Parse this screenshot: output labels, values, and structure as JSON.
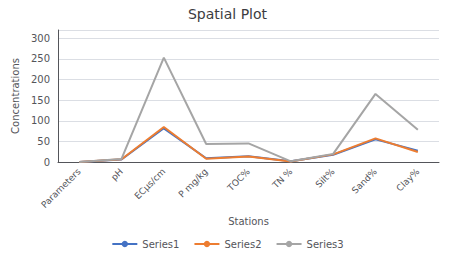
{
  "chart_data": {
    "type": "line",
    "title": "Spatial Plot",
    "xlabel": "Stations",
    "ylabel": "Concentrations",
    "categories": [
      "Parameters",
      "pH",
      "ECµs/cm",
      "P mg/kg",
      "TOC%",
      "TN %",
      "Silt%",
      "Sand%",
      "Clay%"
    ],
    "series": [
      {
        "name": "Series1",
        "color": "#4472C4",
        "values": [
          0,
          6.1,
          81.65,
          9.0,
          14.14,
          1.72,
          17.57,
          54.78,
          27.65
        ]
      },
      {
        "name": "Series2",
        "color": "#ED7D31",
        "values": [
          0,
          6.74,
          84.8,
          7.8,
          13.31,
          1.46,
          18.51,
          57.34,
          24.15
        ]
      },
      {
        "name": "Series3",
        "color": "#A5A5A5",
        "values": [
          0,
          7.4,
          253.0,
          43.76,
          45.0,
          1.59,
          19.7,
          165.0,
          78.0
        ]
      }
    ],
    "ylim": [
      0,
      320
    ],
    "yticks": [
      0,
      50,
      100,
      150,
      200,
      250,
      300
    ],
    "grid": true,
    "legend": "bottom"
  }
}
